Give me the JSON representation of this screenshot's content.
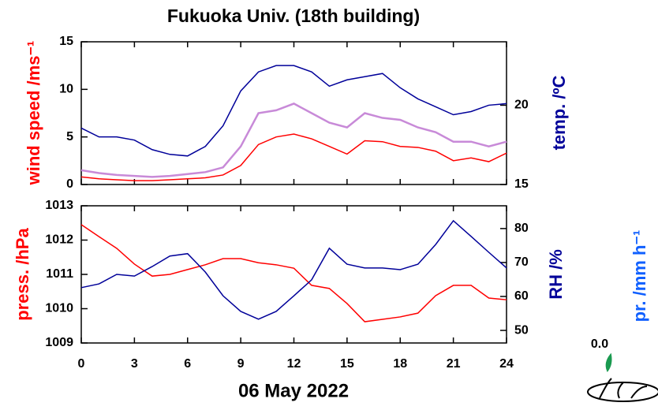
{
  "chart_data": [
    {
      "type": "line",
      "title": "Fukuoka Univ. (18th building)",
      "ylabel": "wind speed /ms⁻¹",
      "y2label": "temp. /ºC",
      "x": [
        0,
        1,
        2,
        3,
        4,
        5,
        6,
        7,
        8,
        9,
        10,
        11,
        12,
        13,
        14,
        15,
        16,
        17,
        18,
        19,
        20,
        21,
        22,
        23,
        24
      ],
      "xlim": [
        0,
        24
      ],
      "xticks": [
        0,
        3,
        6,
        9,
        12,
        15,
        18,
        21,
        24
      ],
      "ylim": [
        0,
        15
      ],
      "yticks": [
        0,
        5,
        10,
        15
      ],
      "y2lim": [
        15,
        24
      ],
      "y2ticks": [
        15,
        20
      ],
      "series": [
        {
          "color": "#c88ad8",
          "values": [
            1.5,
            1.2,
            1.0,
            0.9,
            0.8,
            0.9,
            1.1,
            1.3,
            1.8,
            4.0,
            7.5,
            7.8,
            8.5,
            7.5,
            6.5,
            6.0,
            7.5,
            7.0,
            6.8,
            6.0,
            5.5,
            4.5,
            4.5,
            4.0,
            4.5
          ]
        },
        {
          "color": "#ff0000",
          "values": [
            0.8,
            0.6,
            0.5,
            0.4,
            0.4,
            0.5,
            0.6,
            0.7,
            1.0,
            2.0,
            4.2,
            5.0,
            5.3,
            4.8,
            4.0,
            3.2,
            4.6,
            4.5,
            4.0,
            3.9,
            3.5,
            2.5,
            2.8,
            2.4,
            3.3
          ]
        },
        {
          "color": "#000099",
          "axis": "y2",
          "values": [
            18.56,
            18.0,
            18.0,
            17.8,
            17.2,
            16.9,
            16.8,
            17.4,
            18.7,
            20.9,
            22.1,
            22.5,
            22.5,
            22.1,
            21.2,
            21.6,
            21.8,
            22.0,
            21.1,
            20.4,
            19.9,
            19.4,
            19.6,
            20.0,
            20.1
          ]
        }
      ]
    },
    {
      "type": "line",
      "xlabel": "06 May 2022",
      "ylabel": "press. /hPa",
      "y2label": "RH /%",
      "y3label": "pr. /mm h⁻¹",
      "y3ticks": [
        {
          "value": 0,
          "label": "0.0"
        }
      ],
      "x": [
        0,
        1,
        2,
        3,
        4,
        5,
        6,
        7,
        8,
        9,
        10,
        11,
        12,
        13,
        14,
        15,
        16,
        17,
        18,
        19,
        20,
        21,
        22,
        23,
        24
      ],
      "xlim": [
        0,
        24
      ],
      "xticks": [
        0,
        3,
        6,
        9,
        12,
        15,
        18,
        21,
        24
      ],
      "ylim": [
        1009,
        1013
      ],
      "yticks": [
        1009,
        1010,
        1011,
        1012,
        1013
      ],
      "y2lim": [
        46.3,
        86.7
      ],
      "y2ticks": [
        50,
        60,
        70,
        80
      ],
      "series": [
        {
          "color": "#ff0000",
          "values": [
            1012.45,
            1012.1,
            1011.76,
            1011.3,
            1010.95,
            1011.0,
            1011.14,
            1011.28,
            1011.46,
            1011.46,
            1011.34,
            1011.28,
            1011.18,
            1010.68,
            1010.59,
            1010.15,
            1009.62,
            1009.69,
            1009.76,
            1009.87,
            1010.38,
            1010.68,
            1010.68,
            1010.31,
            1010.26
          ]
        },
        {
          "color": "#000099",
          "axis": "y2",
          "values": [
            62.6,
            63.7,
            66.5,
            66.0,
            68.8,
            71.9,
            72.6,
            67.2,
            60.2,
            55.6,
            53.3,
            55.6,
            60.2,
            64.9,
            74.2,
            69.5,
            68.4,
            68.4,
            67.9,
            69.5,
            75.3,
            82.3,
            77.7,
            73.0,
            68.4
          ]
        }
      ]
    }
  ]
}
